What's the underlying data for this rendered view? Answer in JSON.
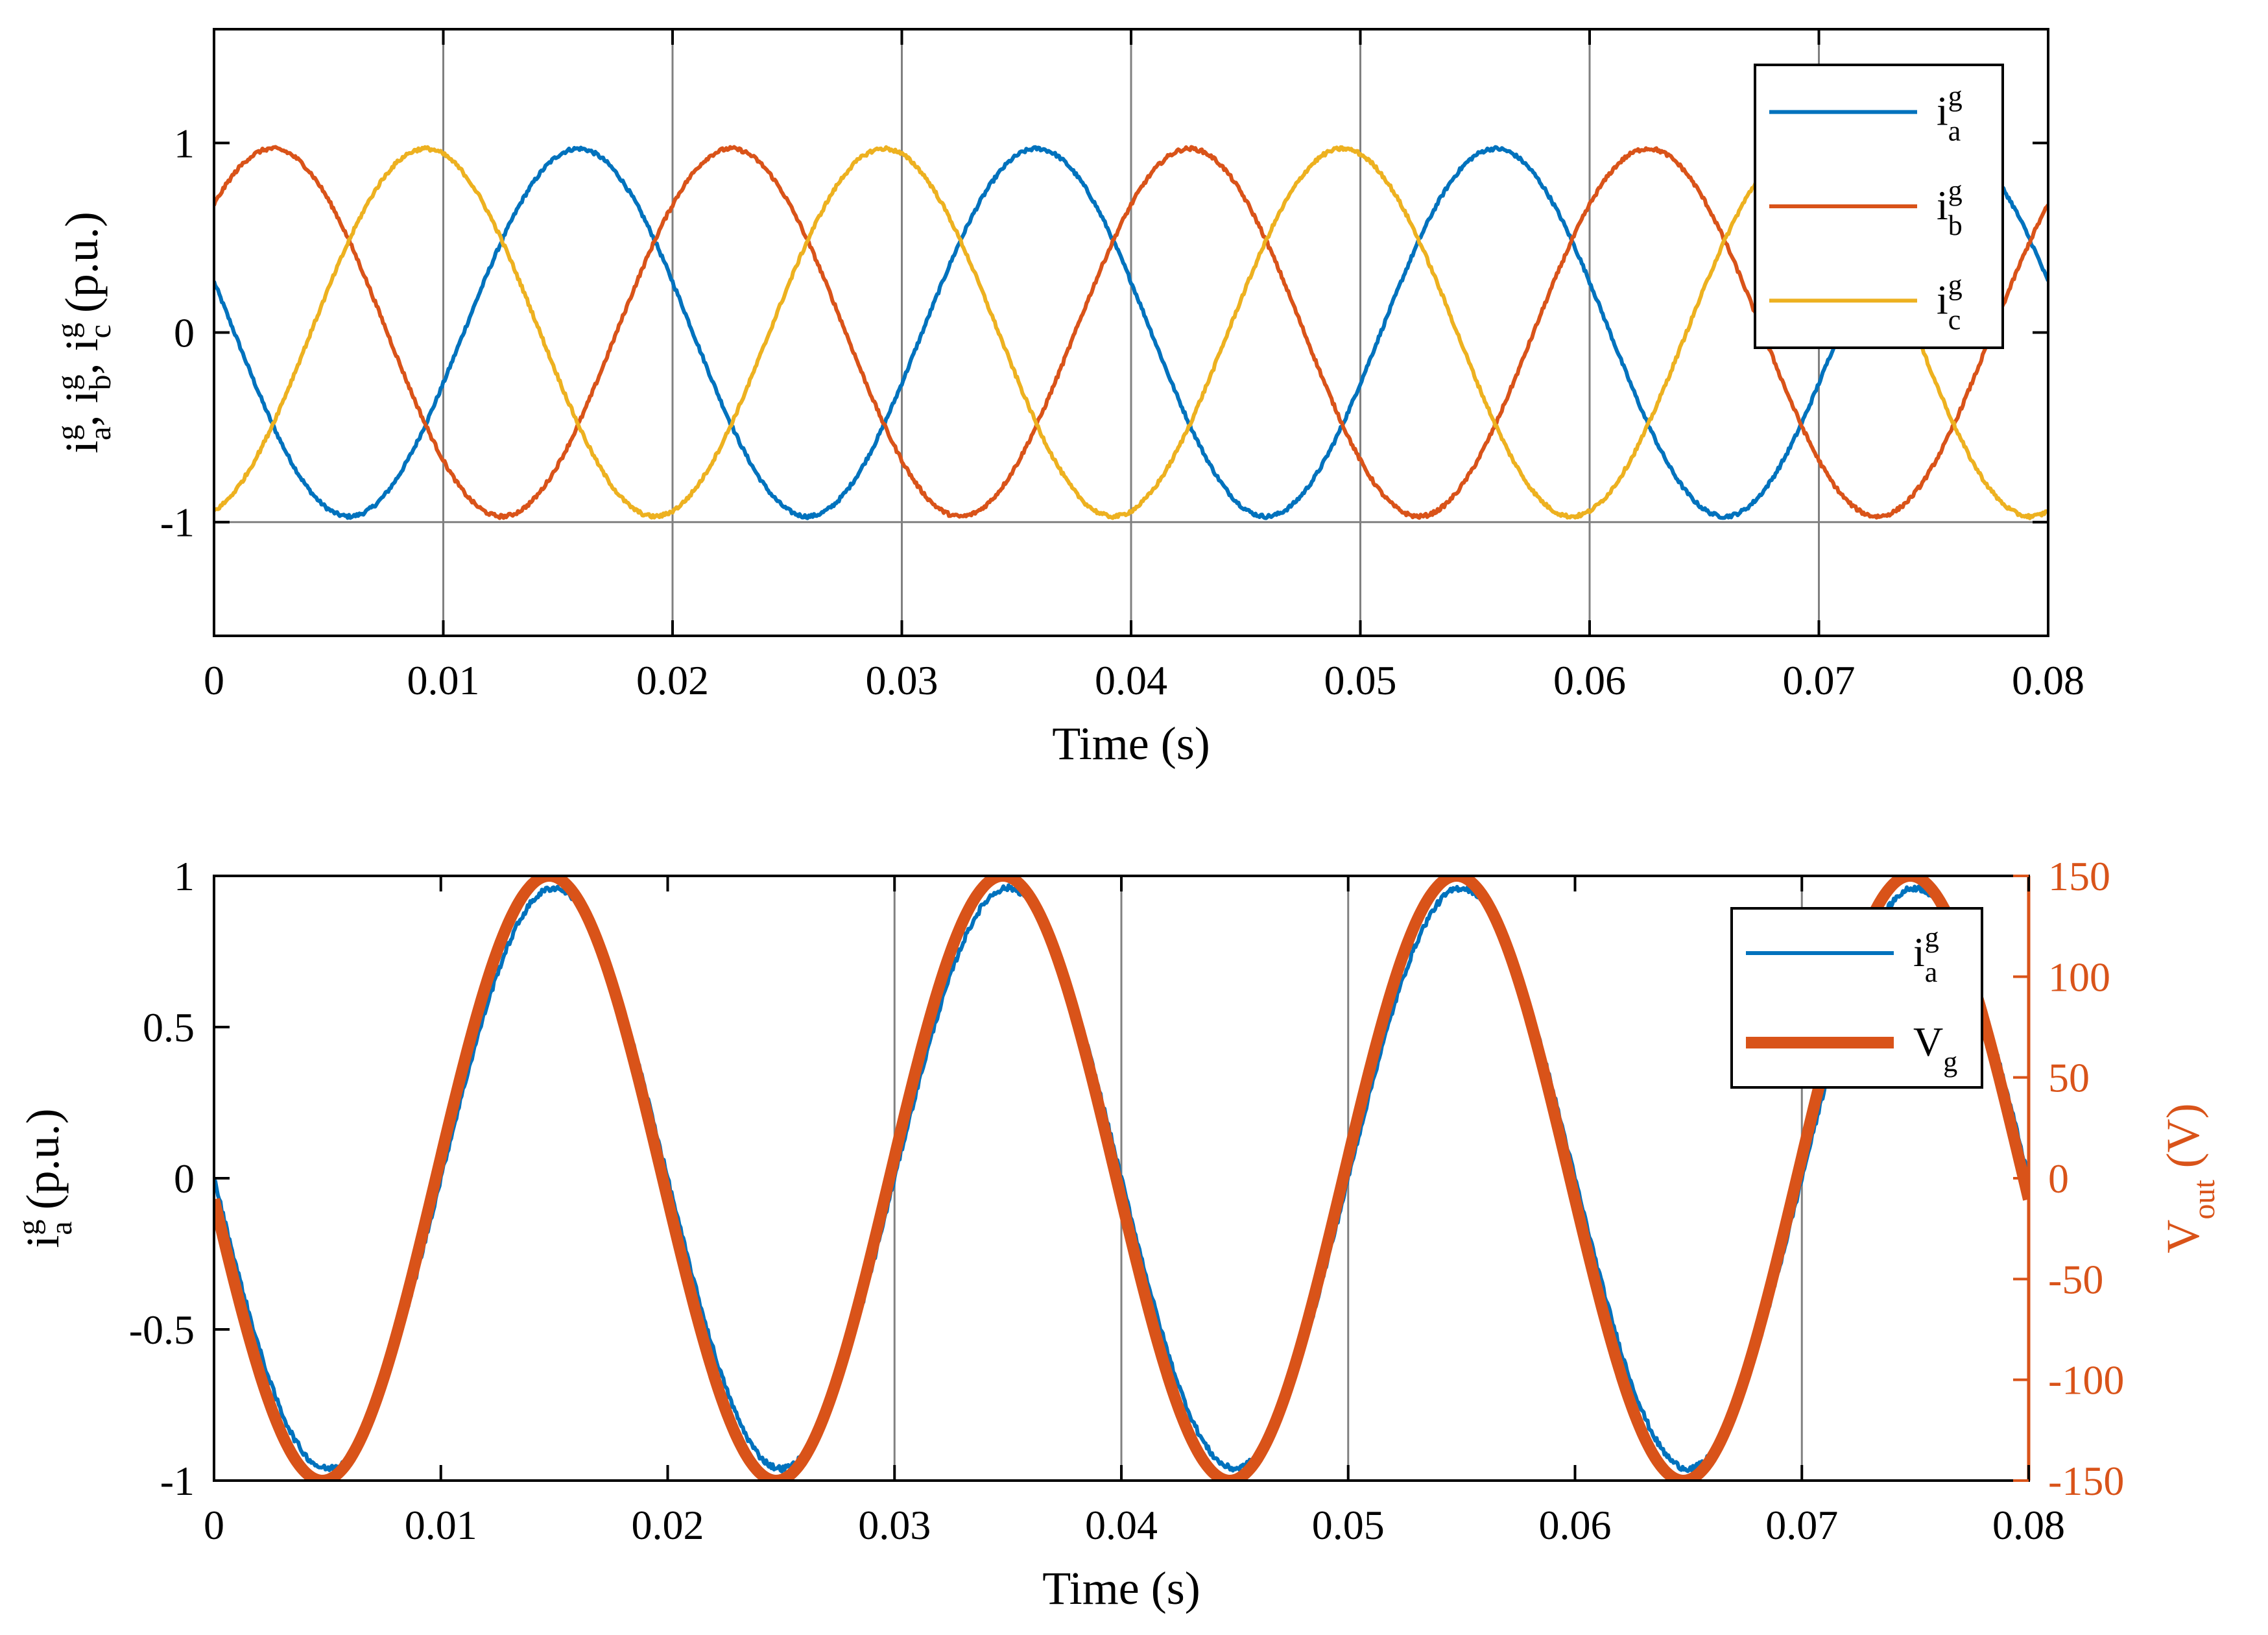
{
  "colors": {
    "ia": "#0072BD",
    "ib": "#D95319",
    "ic": "#EDB120",
    "vg": "#D95319",
    "axis": "#000000",
    "grid": "#808080",
    "right_axis": "#D95319"
  },
  "chart_data": [
    {
      "type": "line",
      "xlabel": "Time (s)",
      "ylabel": {
        "parts": [
          {
            "base": "i",
            "sup": "g",
            "sub": "a",
            "sep": ", "
          },
          {
            "base": "i",
            "sup": "g",
            "sub": "b",
            "sep": ", "
          },
          {
            "base": "i",
            "sup": "g",
            "sub": "c",
            "sep": " "
          },
          {
            "base": "(p.u.)"
          }
        ]
      },
      "xlim": [
        0,
        0.08
      ],
      "ylim": [
        -1.6,
        1.6
      ],
      "xticks": [
        0,
        0.01,
        0.02,
        0.03,
        0.04,
        0.05,
        0.06,
        0.07,
        0.08
      ],
      "xtick_labels": [
        "0",
        "0.01",
        "0.02",
        "0.03",
        "0.04",
        "0.05",
        "0.06",
        "0.07",
        "0.08"
      ],
      "yticks": [
        -1,
        0,
        1
      ],
      "ytick_labels": [
        "-1",
        "0",
        "1"
      ],
      "grid_x": [
        0.01,
        0.02,
        0.03,
        0.04,
        0.05,
        0.06,
        0.07
      ],
      "grid_y": [
        -1
      ],
      "legend": "top-right",
      "series": [
        {
          "name": {
            "base": "i",
            "sup": "g",
            "sub": "a"
          },
          "color_key": "ia",
          "amplitude": 0.97,
          "frequency_hz": 50,
          "phase_deg": 164
        },
        {
          "name": {
            "base": "i",
            "sup": "g",
            "sub": "b"
          },
          "color_key": "ib",
          "amplitude": 0.97,
          "frequency_hz": 50,
          "phase_deg": 44
        },
        {
          "name": {
            "base": "i",
            "sup": "g",
            "sub": "c"
          },
          "color_key": "ic",
          "amplitude": 0.97,
          "frequency_hz": 50,
          "phase_deg": 284
        }
      ]
    },
    {
      "type": "line",
      "xlabel": "Time (s)",
      "ylabel": {
        "parts": [
          {
            "base": "i",
            "sup": "g",
            "sub": "a",
            "sep": " "
          },
          {
            "base": "(p.u.)"
          }
        ]
      },
      "ylabel_right": {
        "base": "V",
        "sub": "out",
        "tail": " (V)"
      },
      "xlim": [
        0,
        0.08
      ],
      "ylim": [
        -1,
        1
      ],
      "ylim_right": [
        -150,
        150
      ],
      "xticks": [
        0,
        0.01,
        0.02,
        0.03,
        0.04,
        0.05,
        0.06,
        0.07,
        0.08
      ],
      "xtick_labels": [
        "0",
        "0.01",
        "0.02",
        "0.03",
        "0.04",
        "0.05",
        "0.06",
        "0.07",
        "0.08"
      ],
      "yticks": [
        -1,
        -0.5,
        0,
        0.5,
        1
      ],
      "ytick_labels": [
        "-1",
        "-0.5",
        "0",
        "0.5",
        "1"
      ],
      "yticks_right": [
        -150,
        -100,
        -50,
        0,
        50,
        100,
        150
      ],
      "ytick_labels_right": [
        "-150",
        "-100",
        "-50",
        "0",
        "50",
        "100",
        "150"
      ],
      "grid_x": [
        0.03,
        0.04,
        0.05,
        0.07
      ],
      "legend": "top-right",
      "series": [
        {
          "name": {
            "base": "i",
            "sup": "g",
            "sub": "a"
          },
          "color_key": "ia",
          "axis": "left",
          "amplitude": 0.96,
          "frequency_hz": 50,
          "phase_deg": 180
        },
        {
          "name": {
            "base": "V",
            "sub": "g"
          },
          "color_key": "vg",
          "axis": "right",
          "amplitude": 150,
          "frequency_hz": 50,
          "phase_deg": 184
        }
      ]
    }
  ]
}
